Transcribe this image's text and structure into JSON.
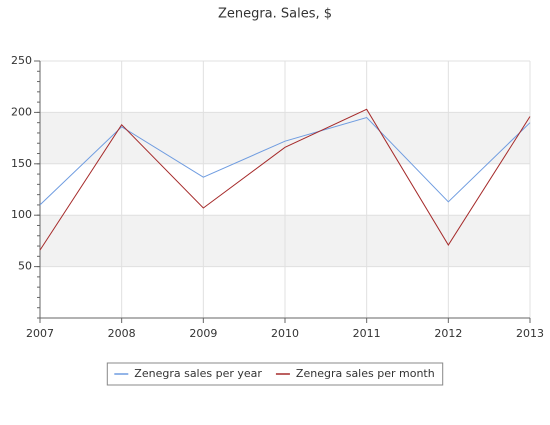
{
  "chart_data": {
    "type": "line",
    "title": "Zenegra. Sales, $",
    "x": [
      2007,
      2008,
      2009,
      2010,
      2011,
      2012,
      2013
    ],
    "xlim": [
      2007,
      2013
    ],
    "xticks": [
      2007,
      2008,
      2009,
      2010,
      2011,
      2012,
      2013
    ],
    "ylim": [
      0,
      250
    ],
    "yticks": [
      50,
      100,
      150,
      200,
      250
    ],
    "grid": true,
    "legend": "bottom",
    "series": [
      {
        "name": "Zenegra sales per year",
        "color": "#6f9ce0",
        "values": [
          110,
          186,
          137,
          172,
          195,
          113,
          190
        ]
      },
      {
        "name": "Zenegra sales per month",
        "color": "#a52a2a",
        "values": [
          66,
          188,
          107,
          166,
          203,
          71,
          196
        ]
      }
    ]
  }
}
